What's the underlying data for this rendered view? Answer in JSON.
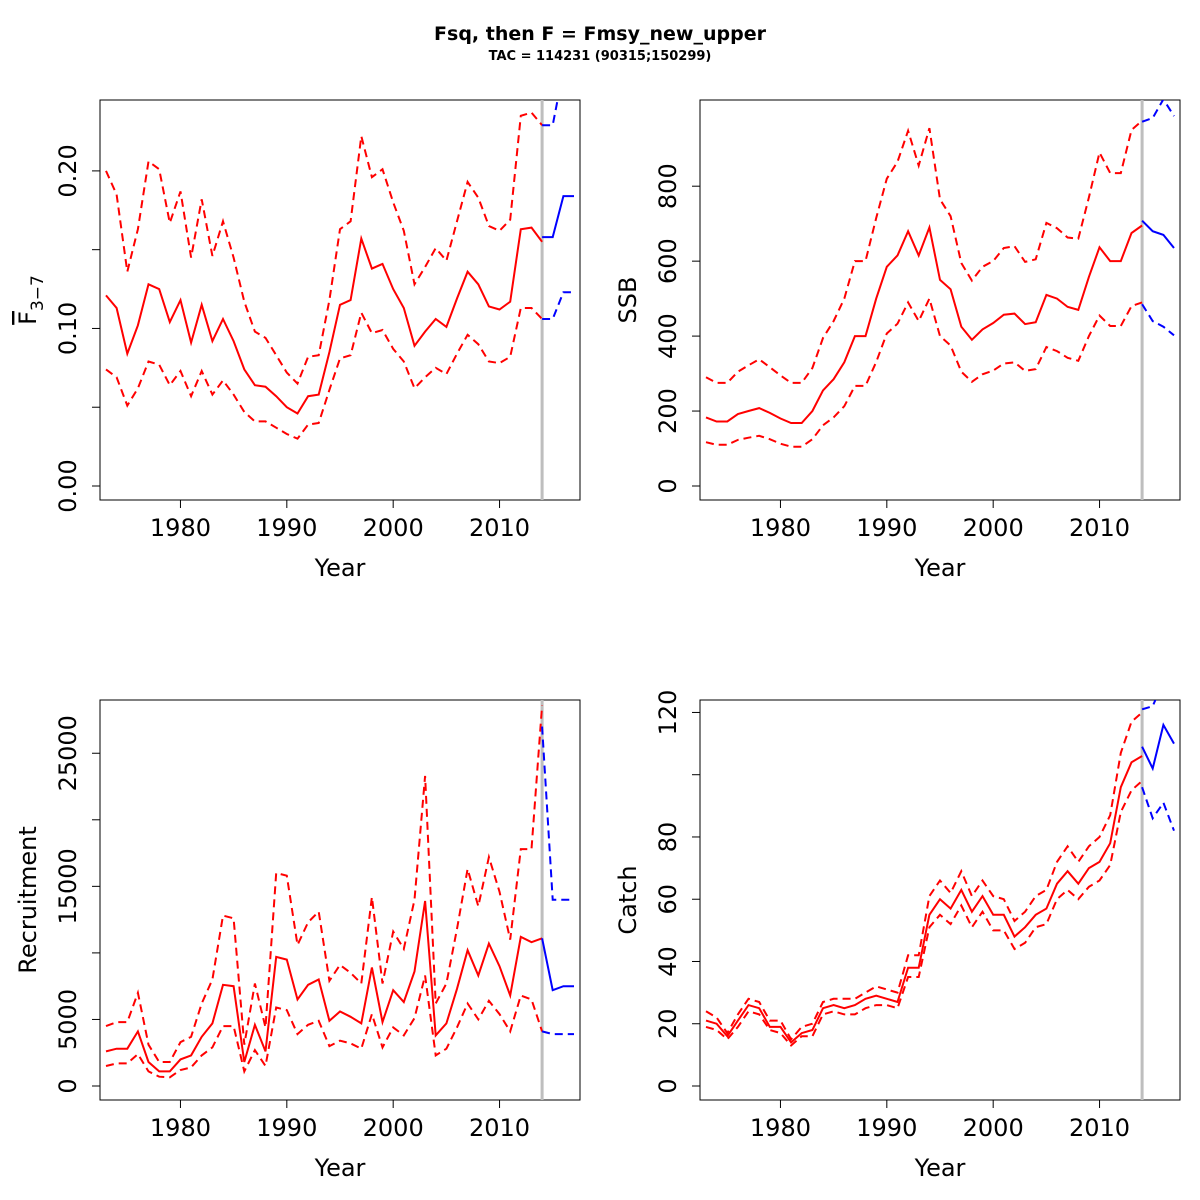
{
  "title": "Fsq, then F = Fmsy_new_upper",
  "subtitle": "TAC = 114231 (90315;150299)",
  "colors": {
    "historical": "#ff0000",
    "projection": "#0000ff",
    "divider": "#bebebe",
    "axis": "#000000"
  },
  "chart_data": [
    {
      "type": "line",
      "xlabel": "Year",
      "ylabel": "F̄3−7",
      "xlim": [
        1973,
        2017
      ],
      "ylim": [
        0.0,
        0.245
      ],
      "xticks": [
        1980,
        1990,
        2000,
        2010
      ],
      "yticks": [
        0.0,
        0.05,
        0.1,
        0.15,
        0.2
      ],
      "ytick_labels": [
        "0.00",
        "",
        "0.10",
        "",
        "0.20"
      ],
      "divider_year": 2014,
      "historical": {
        "x": [
          1973,
          1974,
          1975,
          1976,
          1977,
          1978,
          1979,
          1980,
          1981,
          1982,
          1983,
          1984,
          1985,
          1986,
          1987,
          1988,
          1989,
          1990,
          1991,
          1992,
          1993,
          1994,
          1995,
          1996,
          1997,
          1998,
          1999,
          2000,
          2001,
          2002,
          2003,
          2004,
          2005,
          2006,
          2007,
          2008,
          2009,
          2010,
          2011,
          2012,
          2013,
          2014
        ],
        "central": [
          0.121,
          0.113,
          0.084,
          0.102,
          0.128,
          0.125,
          0.104,
          0.118,
          0.091,
          0.115,
          0.092,
          0.106,
          0.092,
          0.074,
          0.064,
          0.063,
          0.057,
          0.05,
          0.046,
          0.057,
          0.058,
          0.085,
          0.115,
          0.118,
          0.157,
          0.138,
          0.141,
          0.125,
          0.113,
          0.089,
          0.098,
          0.106,
          0.101,
          0.119,
          0.136,
          0.128,
          0.114,
          0.112,
          0.117,
          0.163,
          0.164,
          0.155
        ],
        "upper": [
          0.2,
          0.185,
          0.136,
          0.163,
          0.206,
          0.201,
          0.167,
          0.187,
          0.145,
          0.182,
          0.146,
          0.168,
          0.145,
          0.117,
          0.098,
          0.094,
          0.083,
          0.072,
          0.065,
          0.082,
          0.083,
          0.118,
          0.163,
          0.168,
          0.222,
          0.196,
          0.201,
          0.18,
          0.162,
          0.128,
          0.139,
          0.151,
          0.143,
          0.168,
          0.193,
          0.183,
          0.165,
          0.162,
          0.169,
          0.235,
          0.237,
          0.229
        ],
        "lower": [
          0.074,
          0.069,
          0.051,
          0.062,
          0.079,
          0.077,
          0.064,
          0.073,
          0.057,
          0.073,
          0.058,
          0.067,
          0.058,
          0.047,
          0.041,
          0.041,
          0.037,
          0.033,
          0.03,
          0.039,
          0.04,
          0.061,
          0.081,
          0.083,
          0.11,
          0.097,
          0.099,
          0.087,
          0.079,
          0.062,
          0.069,
          0.075,
          0.071,
          0.084,
          0.096,
          0.09,
          0.079,
          0.078,
          0.082,
          0.113,
          0.113,
          0.106
        ]
      },
      "projection": {
        "x": [
          2014,
          2015,
          2016,
          2017
        ],
        "central": [
          0.158,
          0.158,
          0.184,
          0.184
        ],
        "upper": [
          0.229,
          0.229,
          0.264,
          0.264
        ],
        "lower": [
          0.106,
          0.106,
          0.123,
          0.123
        ]
      }
    },
    {
      "type": "line",
      "xlabel": "Year",
      "ylabel": "SSB",
      "xlim": [
        1973,
        2017
      ],
      "ylim": [
        0,
        1030
      ],
      "xticks": [
        1980,
        1990,
        2000,
        2010
      ],
      "yticks": [
        0,
        200,
        400,
        600,
        800
      ],
      "ytick_labels": [
        "0",
        "200",
        "400",
        "600",
        "800"
      ],
      "divider_year": 2014,
      "historical": {
        "x": [
          1973,
          1974,
          1975,
          1976,
          1977,
          1978,
          1979,
          1980,
          1981,
          1982,
          1983,
          1984,
          1985,
          1986,
          1987,
          1988,
          1989,
          1990,
          1991,
          1992,
          1993,
          1994,
          1995,
          1996,
          1997,
          1998,
          1999,
          2000,
          2001,
          2002,
          2003,
          2004,
          2005,
          2006,
          2007,
          2008,
          2009,
          2010,
          2011,
          2012,
          2013,
          2014
        ],
        "central": [
          183,
          172,
          172,
          192,
          200,
          208,
          195,
          180,
          168,
          168,
          200,
          255,
          285,
          330,
          400,
          400,
          500,
          585,
          615,
          680,
          615,
          690,
          550,
          525,
          425,
          390,
          418,
          435,
          457,
          460,
          432,
          437,
          510,
          500,
          478,
          470,
          558,
          637,
          600,
          600,
          675,
          695
        ],
        "upper": [
          290,
          275,
          275,
          305,
          322,
          338,
          317,
          295,
          275,
          275,
          315,
          395,
          440,
          500,
          600,
          600,
          715,
          820,
          865,
          948,
          855,
          955,
          765,
          720,
          595,
          548,
          585,
          600,
          635,
          640,
          598,
          605,
          702,
          688,
          663,
          660,
          770,
          890,
          835,
          835,
          950,
          975
        ],
        "lower": [
          117,
          110,
          110,
          123,
          129,
          134,
          125,
          113,
          105,
          105,
          125,
          162,
          183,
          213,
          267,
          267,
          331,
          407,
          433,
          490,
          440,
          500,
          400,
          375,
          305,
          278,
          298,
          308,
          327,
          330,
          307,
          312,
          371,
          360,
          342,
          334,
          400,
          455,
          427,
          427,
          480,
          490
        ]
      },
      "projection": {
        "x": [
          2014,
          2015,
          2016,
          2017
        ],
        "central": [
          708,
          680,
          670,
          635
        ],
        "upper": [
          972,
          982,
          1032,
          987
        ],
        "lower": [
          485,
          440,
          425,
          402
        ]
      }
    },
    {
      "type": "line",
      "xlabel": "Year",
      "ylabel": "Recruitment",
      "xlim": [
        1973,
        2017
      ],
      "ylim": [
        0,
        29000
      ],
      "xticks": [
        1980,
        1990,
        2000,
        2010
      ],
      "yticks": [
        0,
        5000,
        10000,
        15000,
        20000,
        25000
      ],
      "ytick_labels": [
        "0",
        "5000",
        "",
        "15000",
        "",
        "25000"
      ],
      "divider_year": 2014,
      "historical": {
        "x": [
          1973,
          1974,
          1975,
          1976,
          1977,
          1978,
          1979,
          1980,
          1981,
          1982,
          1983,
          1984,
          1985,
          1986,
          1987,
          1988,
          1989,
          1990,
          1991,
          1992,
          1993,
          1994,
          1995,
          1996,
          1997,
          1998,
          1999,
          2000,
          2001,
          2002,
          2003,
          2004,
          2005,
          2006,
          2007,
          2008,
          2009,
          2010,
          2011,
          2012,
          2013,
          2014
        ],
        "central": [
          2600,
          2800,
          2800,
          4100,
          1800,
          1100,
          1100,
          2000,
          2300,
          3700,
          4700,
          7600,
          7500,
          1800,
          4600,
          2600,
          9700,
          9500,
          6500,
          7600,
          8000,
          4900,
          5600,
          5200,
          4700,
          8900,
          4800,
          7200,
          6300,
          8600,
          13900,
          3800,
          4700,
          7300,
          10200,
          8300,
          10700,
          9000,
          6800,
          11200,
          10800,
          11100
        ],
        "upper": [
          4500,
          4800,
          4800,
          7000,
          3100,
          1800,
          1800,
          3300,
          3700,
          6200,
          8000,
          12800,
          12600,
          3100,
          7700,
          4400,
          16000,
          15800,
          10600,
          12300,
          13100,
          7900,
          9100,
          8500,
          7700,
          14200,
          7700,
          11600,
          10300,
          14000,
          23300,
          6200,
          7700,
          11800,
          16300,
          13500,
          17200,
          14600,
          11000,
          17800,
          17800,
          28600
        ],
        "lower": [
          1500,
          1700,
          1700,
          2400,
          1100,
          700,
          650,
          1200,
          1400,
          2300,
          2900,
          4500,
          4500,
          1100,
          2700,
          1500,
          5900,
          5700,
          3900,
          4600,
          4900,
          3000,
          3400,
          3200,
          2800,
          5400,
          2900,
          4400,
          3800,
          5100,
          8300,
          2300,
          2800,
          4400,
          6200,
          5000,
          6400,
          5400,
          4100,
          6800,
          6500,
          4100
        ]
      },
      "projection": {
        "x": [
          2014,
          2015,
          2016,
          2017
        ],
        "central": [
          11100,
          7200,
          7500,
          7500
        ],
        "upper": [
          27000,
          14000,
          14000,
          14000
        ],
        "lower": [
          4100,
          3900,
          3900,
          3900
        ]
      }
    },
    {
      "type": "line",
      "xlabel": "Year",
      "ylabel": "Catch",
      "xlim": [
        1973,
        2017
      ],
      "ylim": [
        0,
        124
      ],
      "xticks": [
        1980,
        1990,
        2000,
        2010
      ],
      "yticks": [
        0,
        20,
        40,
        60,
        80,
        100,
        120
      ],
      "ytick_labels": [
        "0",
        "20",
        "40",
        "60",
        "80",
        "",
        "120"
      ],
      "divider_year": 2014,
      "historical": {
        "x": [
          1973,
          1974,
          1975,
          1976,
          1977,
          1978,
          1979,
          1980,
          1981,
          1982,
          1983,
          1984,
          1985,
          1986,
          1987,
          1988,
          1989,
          1990,
          1991,
          1992,
          1993,
          1994,
          1995,
          1996,
          1997,
          1998,
          1999,
          2000,
          2001,
          2002,
          2003,
          2004,
          2005,
          2006,
          2007,
          2008,
          2009,
          2010,
          2011,
          2012,
          2013,
          2014
        ],
        "central": [
          21,
          20,
          16,
          21,
          26,
          25,
          19,
          19,
          14,
          17,
          18,
          25,
          26,
          25,
          26,
          28,
          29,
          28,
          27,
          38,
          38,
          55,
          60,
          57,
          63,
          56,
          61,
          55,
          55,
          48,
          51,
          55,
          57,
          65,
          69,
          65,
          70,
          72,
          78,
          96,
          104,
          106
        ],
        "upper": [
          24,
          22,
          17,
          23,
          28,
          27,
          21,
          21,
          15,
          19,
          20,
          27,
          28,
          28,
          28,
          30,
          32,
          31,
          30,
          42,
          42,
          61,
          66,
          62,
          69,
          61,
          66,
          61,
          60,
          53,
          56,
          61,
          63,
          72,
          77,
          72,
          77,
          80,
          87,
          107,
          117,
          120
        ],
        "lower": [
          19,
          18,
          15,
          19,
          24,
          23,
          18,
          17,
          13,
          16,
          16,
          23,
          24,
          23,
          23,
          25,
          26,
          26,
          25,
          35,
          35,
          51,
          55,
          52,
          58,
          51,
          56,
          50,
          50,
          44,
          46,
          51,
          52,
          60,
          63,
          60,
          64,
          66,
          71,
          88,
          95,
          98
        ]
      },
      "projection": {
        "x": [
          2014,
          2015,
          2016,
          2017
        ],
        "central": [
          109,
          102,
          116,
          110
        ],
        "upper": [
          121,
          122,
          130,
          126
        ],
        "lower": [
          96,
          86,
          91,
          82
        ]
      }
    }
  ]
}
